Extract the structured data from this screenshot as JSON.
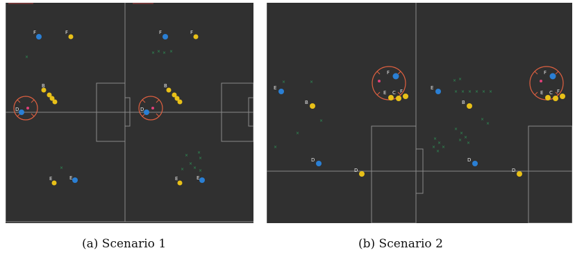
{
  "figure": {
    "captions": [
      "(a) Scenario 1",
      "(b) Scenario 2"
    ]
  },
  "colors": {
    "pitch": "#303030",
    "lines": "#8a8a8a",
    "blue_player": "#2a7fd4",
    "yellow_player": "#e8c018",
    "circle": "#e06040",
    "marker": "#2e9a5a"
  },
  "panels": [
    {
      "id": "scenario-1",
      "players": [
        {
          "label": "F",
          "team": "blue"
        },
        {
          "label": "F",
          "team": "yellow"
        },
        {
          "label": "B",
          "team": "yellow"
        },
        {
          "label": "D",
          "team": "blue"
        },
        {
          "label": "E",
          "team": "yellow"
        },
        {
          "label": "E",
          "team": "blue"
        },
        {
          "label": "F",
          "team": "blue"
        },
        {
          "label": "F",
          "team": "yellow"
        },
        {
          "label": "B",
          "team": "yellow"
        },
        {
          "label": "D",
          "team": "blue"
        },
        {
          "label": "E",
          "team": "yellow"
        },
        {
          "label": "E",
          "team": "blue"
        }
      ]
    },
    {
      "id": "scenario-2",
      "players": [
        {
          "label": "E",
          "team": "blue"
        },
        {
          "label": "B",
          "team": "yellow"
        },
        {
          "label": "D",
          "team": "blue"
        },
        {
          "label": "D",
          "team": "yellow"
        },
        {
          "label": "F",
          "team": "blue"
        },
        {
          "label": "E",
          "team": "yellow"
        },
        {
          "label": "C",
          "team": "yellow"
        },
        {
          "label": "F",
          "team": "yellow"
        },
        {
          "label": "E",
          "team": "blue"
        },
        {
          "label": "B",
          "team": "yellow"
        },
        {
          "label": "D",
          "team": "blue"
        },
        {
          "label": "D",
          "team": "yellow"
        },
        {
          "label": "F",
          "team": "blue"
        },
        {
          "label": "E",
          "team": "yellow"
        },
        {
          "label": "C",
          "team": "yellow"
        },
        {
          "label": "F",
          "team": "yellow"
        }
      ]
    }
  ]
}
